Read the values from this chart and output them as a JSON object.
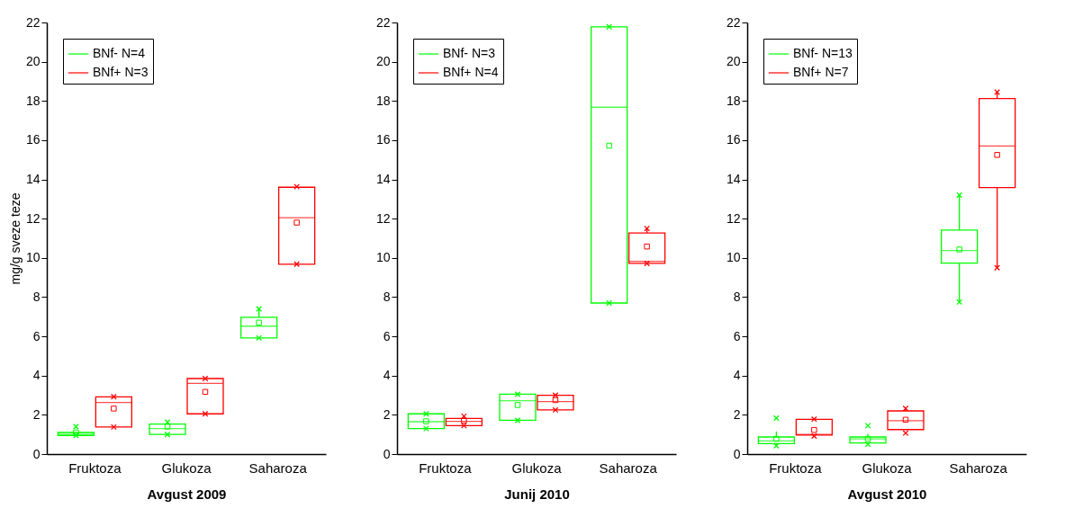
{
  "chart_data": [
    {
      "type": "box",
      "xlabel": "Avgust 2009",
      "ylabel": "mg/g sveze teze",
      "categories": [
        "Fruktoza",
        "Glukoza",
        "Saharoza"
      ],
      "ylim": [
        0,
        22
      ],
      "yticks": [
        0,
        2,
        4,
        6,
        8,
        10,
        12,
        14,
        16,
        18,
        20,
        22
      ],
      "legend": "top left",
      "series": [
        {
          "name": "BNf- N=4",
          "color": "#00ff00",
          "boxes": [
            {
              "low": 0.95,
              "q1": 0.95,
              "median": 1.0,
              "q3": 1.1,
              "high": 1.1,
              "mean": 1.1,
              "outliers": [
                0.95,
                1.4
              ]
            },
            {
              "low": 1.0,
              "q1": 1.0,
              "median": 1.3,
              "q3": 1.53,
              "high": 1.63,
              "mean": 1.4,
              "outliers": [
                1.0,
                1.63
              ]
            },
            {
              "low": 5.92,
              "q1": 5.92,
              "median": 6.52,
              "q3": 6.97,
              "high": 7.4,
              "mean": 6.7,
              "outliers": [
                5.92,
                7.4
              ]
            }
          ]
        },
        {
          "name": "BNf+ N=3",
          "color": "#ff0000",
          "boxes": [
            {
              "low": 1.38,
              "q1": 1.38,
              "median": 2.63,
              "q3": 2.92,
              "high": 2.92,
              "mean": 2.32,
              "outliers": [
                1.38,
                2.92
              ]
            },
            {
              "low": 2.05,
              "q1": 2.05,
              "median": 3.6,
              "q3": 3.85,
              "high": 3.85,
              "mean": 3.17,
              "outliers": [
                2.05,
                3.85
              ]
            },
            {
              "low": 9.68,
              "q1": 9.68,
              "median": 12.05,
              "q3": 13.6,
              "high": 13.63,
              "mean": 11.8,
              "outliers": [
                9.68,
                13.63
              ]
            }
          ]
        }
      ]
    },
    {
      "type": "box",
      "xlabel": "Junij 2010",
      "categories": [
        "Fruktoza",
        "Glukoza",
        "Saharoza"
      ],
      "ylim": [
        0,
        22
      ],
      "yticks": [
        0,
        2,
        4,
        6,
        8,
        10,
        12,
        14,
        16,
        18,
        20,
        22
      ],
      "legend": "top left",
      "series": [
        {
          "name": "BNf- N=3",
          "color": "#00ff00",
          "boxes": [
            {
              "low": 1.3,
              "q1": 1.3,
              "median": 1.65,
              "q3": 2.05,
              "high": 2.05,
              "mean": 1.67,
              "outliers": [
                1.3,
                2.05
              ]
            },
            {
              "low": 1.72,
              "q1": 1.72,
              "median": 2.72,
              "q3": 3.05,
              "high": 3.05,
              "mean": 2.5,
              "outliers": [
                1.72,
                3.05
              ]
            },
            {
              "low": 7.7,
              "q1": 7.7,
              "median": 17.68,
              "q3": 21.78,
              "high": 21.78,
              "mean": 15.72,
              "outliers": [
                7.7,
                21.78
              ]
            }
          ]
        },
        {
          "name": "BNf+ N=4",
          "color": "#ff0000",
          "boxes": [
            {
              "low": 1.45,
              "q1": 1.45,
              "median": 1.67,
              "q3": 1.82,
              "high": 1.93,
              "mean": 1.7,
              "outliers": [
                1.45,
                1.93
              ]
            },
            {
              "low": 2.25,
              "q1": 2.25,
              "median": 2.68,
              "q3": 3.0,
              "high": 3.0,
              "mean": 2.75,
              "outliers": [
                2.25,
                3.0
              ]
            },
            {
              "low": 9.72,
              "q1": 9.72,
              "median": 9.83,
              "q3": 11.27,
              "high": 11.5,
              "mean": 10.58,
              "outliers": [
                9.72,
                11.5
              ]
            }
          ]
        }
      ]
    },
    {
      "type": "box",
      "xlabel": "Avgust 2010",
      "categories": [
        "Fruktoza",
        "Glukoza",
        "Saharoza"
      ],
      "ylim": [
        0,
        22
      ],
      "yticks": [
        0,
        2,
        4,
        6,
        8,
        10,
        12,
        14,
        16,
        18,
        20,
        22
      ],
      "legend": "top left",
      "series": [
        {
          "name": "BNf- N=13",
          "color": "#00ff00",
          "boxes": [
            {
              "low": 0.45,
              "q1": 0.53,
              "median": 0.67,
              "q3": 0.87,
              "high": 1.15,
              "mean": 0.78,
              "outliers": [
                0.42,
                1.83
              ]
            },
            {
              "low": 0.5,
              "q1": 0.57,
              "median": 0.77,
              "q3": 0.87,
              "high": 1.03,
              "mean": 0.78,
              "outliers": [
                0.5,
                1.45
              ]
            },
            {
              "low": 7.75,
              "q1": 9.73,
              "median": 10.38,
              "q3": 11.42,
              "high": 13.2,
              "mean": 10.43,
              "outliers": [
                7.75,
                13.2
              ]
            }
          ]
        },
        {
          "name": "BNf+ N=7",
          "color": "#ff0000",
          "boxes": [
            {
              "low": 0.97,
              "q1": 0.97,
              "median": 1.0,
              "q3": 1.77,
              "high": 1.77,
              "mean": 1.23,
              "outliers": [
                0.92,
                1.78
              ]
            },
            {
              "low": 1.25,
              "q1": 1.25,
              "median": 1.7,
              "q3": 2.2,
              "high": 2.33,
              "mean": 1.75,
              "outliers": [
                1.07,
                2.33
              ]
            },
            {
              "low": 9.5,
              "q1": 13.58,
              "median": 15.7,
              "q3": 18.12,
              "high": 18.45,
              "mean": 15.25,
              "outliers": [
                9.5,
                18.45
              ]
            }
          ]
        }
      ]
    }
  ]
}
